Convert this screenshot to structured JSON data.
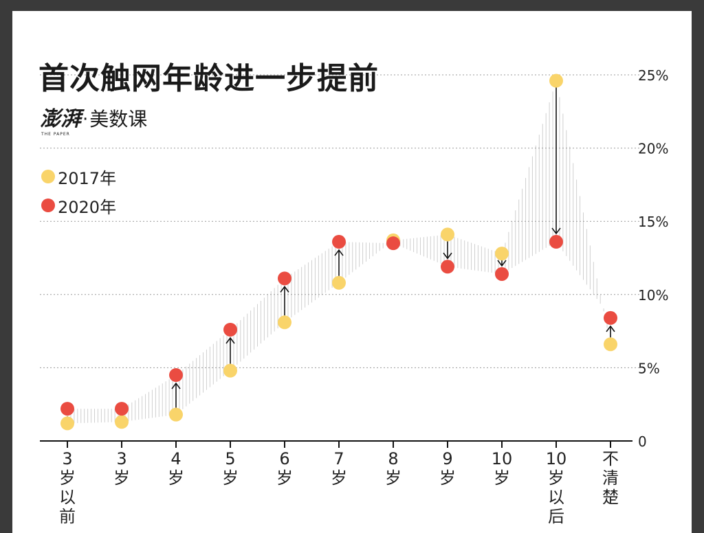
{
  "title": "首次触网年龄进一步提前",
  "brand": {
    "logo": "澎湃",
    "logo_sub": "THE PAPER",
    "separator": "·",
    "name": "美数课"
  },
  "colors": {
    "y2017": "#f9d46a",
    "y2020": "#ea4c41",
    "background": "#3a3a3a",
    "band": "#c8c8c8"
  },
  "chart_data": {
    "type": "scatter",
    "title": "首次触网年龄进一步提前",
    "categories": [
      [
        "3",
        "岁",
        "以",
        "前"
      ],
      [
        "3",
        "岁"
      ],
      [
        "4",
        "岁"
      ],
      [
        "5",
        "岁"
      ],
      [
        "6",
        "岁"
      ],
      [
        "7",
        "岁"
      ],
      [
        "8",
        "岁"
      ],
      [
        "9",
        "岁"
      ],
      [
        "10",
        "岁"
      ],
      [
        "10",
        "岁",
        "以",
        "后"
      ],
      [
        "不",
        "清",
        "楚"
      ]
    ],
    "series": [
      {
        "name": "2017年",
        "color": "#f9d46a",
        "values": [
          1.2,
          1.3,
          1.8,
          4.8,
          8.1,
          10.8,
          13.7,
          14.1,
          12.8,
          24.6,
          6.6
        ]
      },
      {
        "name": "2020年",
        "color": "#ea4c41",
        "values": [
          2.2,
          2.2,
          4.5,
          7.6,
          11.1,
          13.6,
          13.5,
          11.9,
          11.4,
          13.6,
          8.4
        ]
      }
    ],
    "y_ticks": [
      "0",
      "5%",
      "10%",
      "15%",
      "20%",
      "25%"
    ],
    "y_tick_values": [
      0,
      5,
      10,
      15,
      20,
      25
    ],
    "ylim": [
      0,
      25
    ],
    "legend": "top-left",
    "grid": true
  }
}
